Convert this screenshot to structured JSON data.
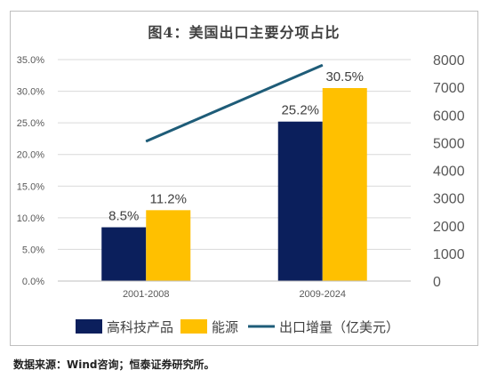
{
  "figure": {
    "title": "图4：美国出口主要分项占比",
    "source": "数据来源：Wind咨询；恒泰证券研究所。"
  },
  "colors": {
    "bar_hightech": "#0b1f5c",
    "bar_energy": "#ffc000",
    "line_exports": "#1e5c78",
    "axis_text": "#595959",
    "grid": "#d9d9d9"
  },
  "chart_data": {
    "type": "bar",
    "categories": [
      "2001-2008",
      "2009-2024"
    ],
    "series": [
      {
        "name": "高科技产品",
        "values": [
          8.5,
          25.2
        ],
        "labels": [
          "8.5%",
          "25.2%"
        ],
        "axis": "left"
      },
      {
        "name": "能源",
        "values": [
          11.2,
          30.5
        ],
        "labels": [
          "11.2%",
          "30.5%"
        ],
        "axis": "left"
      }
    ],
    "line_series": {
      "name": "出口增量（亿美元）",
      "values": [
        5050,
        7800
      ],
      "axis": "right"
    },
    "ylim_left": [
      0,
      35
    ],
    "ylim_right": [
      0,
      8000
    ],
    "yticks_left": [
      "0.0%",
      "5.0%",
      "10.0%",
      "15.0%",
      "20.0%",
      "25.0%",
      "30.0%",
      "35.0%"
    ],
    "yticks_right": [
      "0",
      "1000",
      "2000",
      "3000",
      "4000",
      "5000",
      "6000",
      "7000",
      "8000"
    ],
    "legend": "bottom",
    "grid": true
  }
}
